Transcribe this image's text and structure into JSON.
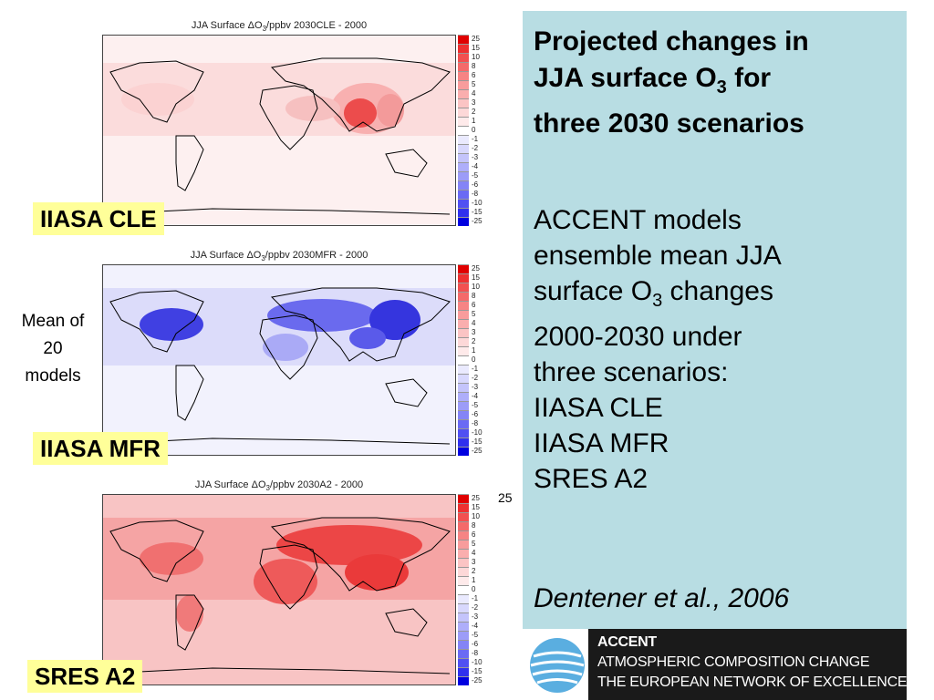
{
  "maps": [
    {
      "title_pre": "JJA Surface ",
      "title_delta": "ΔO",
      "title_sub": "3",
      "title_post": "/ppbv  2030CLE - 2000",
      "label": "IIASA CLE",
      "base_color": "#fdeaea",
      "hotspots": [
        {
          "region": "south-asia",
          "color": "#e84545"
        },
        {
          "region": "east-asia",
          "color": "#f39a9a"
        },
        {
          "region": "middle-east",
          "color": "#f6b8b8"
        }
      ]
    },
    {
      "title_pre": "JJA Surface ",
      "title_delta": "ΔO",
      "title_sub": "3",
      "title_post": "/ppbv  2030MFR - 2000",
      "label": "IIASA MFR",
      "base_color": "#e6e6fb",
      "hotspots": [
        {
          "region": "north-america",
          "color": "#3a3ae0"
        },
        {
          "region": "eurasia",
          "color": "#5858ea"
        },
        {
          "region": "east-asia",
          "color": "#3030dc"
        }
      ]
    },
    {
      "title_pre": "JJA Surface ",
      "title_delta": "ΔO",
      "title_sub": "3",
      "title_post": "/ppbv  2030A2 - 2000",
      "label": "SRES A2",
      "base_color": "#f7b5b5",
      "hotspots": [
        {
          "region": "eurasia",
          "color": "#ea3a3a"
        },
        {
          "region": "africa",
          "color": "#ee5a5a"
        },
        {
          "region": "north-america",
          "color": "#f07070"
        }
      ]
    }
  ],
  "colorbar_labels": [
    "25",
    "15",
    "10",
    "8",
    "6",
    "5",
    "4",
    "3",
    "2",
    "1",
    "0",
    "-1",
    "-2",
    "-3",
    "-4",
    "-5",
    "-6",
    "-8",
    "-10",
    "-15",
    "-25"
  ],
  "colorbar_colors": [
    "#e00000",
    "#ee3030",
    "#f25050",
    "#f46a6a",
    "#f68484",
    "#f89c9c",
    "#faaeae",
    "#fbc4c4",
    "#fdd8d8",
    "#feeaea",
    "#ffffff",
    "#eaeafe",
    "#d8d8fd",
    "#c4c4fb",
    "#aeaefa",
    "#9c9cf8",
    "#8484f6",
    "#6a6af4",
    "#5050f2",
    "#3030ee",
    "#0000e0"
  ],
  "side_note": {
    "line1": "Mean of",
    "line2": "20",
    "line3": "models"
  },
  "stray_label": "25",
  "info": {
    "title_line1": "Projected changes in",
    "title_line2_pre": "JJA surface O",
    "title_line2_sub": "3",
    "title_line2_post": " for",
    "title_line3": "three 2030 scenarios",
    "body_line1": "ACCENT models",
    "body_line2": "ensemble mean JJA",
    "body_line3_pre": "surface O",
    "body_line3_sub": "3",
    "body_line3_post": " changes",
    "body_line4": "2000-2030 under",
    "body_line5": "three scenarios:",
    "body_line6": "IIASA CLE",
    "body_line7": "IIASA MFR",
    "body_line8": "SRES A2",
    "citation": "Dentener et al., 2006"
  },
  "logo": {
    "line1": "ACCENT",
    "line2": "ATMOSPHERIC COMPOSITION CHANGE",
    "line3": "THE EUROPEAN NETWORK OF EXCELLENCE"
  }
}
